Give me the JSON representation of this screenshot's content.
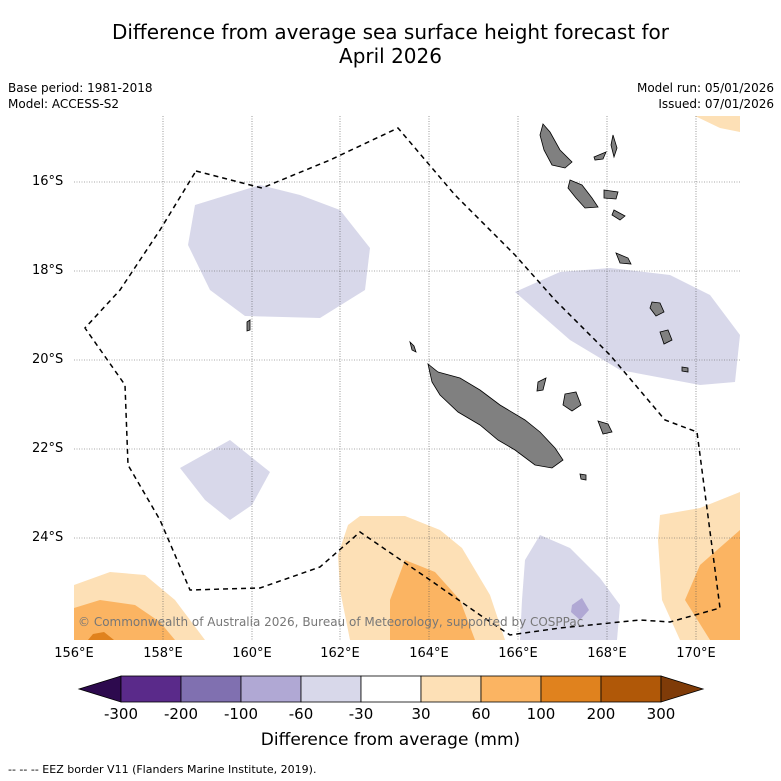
{
  "title_line1": "Difference from average sea surface height forecast for",
  "title_line2": "April 2026",
  "meta_left": {
    "base_period": "Base period: 1981-2018",
    "model": "Model: ACCESS-S2"
  },
  "meta_right": {
    "model_run": "Model run: 05/01/2026",
    "issued": "Issued: 07/01/2026"
  },
  "map": {
    "lat_labels": [
      "16°S",
      "18°S",
      "20°S",
      "22°S",
      "24°S"
    ],
    "lon_labels": [
      "156°E",
      "158°E",
      "160°E",
      "162°E",
      "164°E",
      "166°E",
      "168°E",
      "170°E"
    ],
    "copyright": "© Commonwealth of Australia 2026, Bureau of Meteorology, supported by COSPPac",
    "land_color": "#808080",
    "eez_label": "EEZ border V11"
  },
  "colorbar": {
    "ticks": [
      "-300",
      "-200",
      "-100",
      "-60",
      "-30",
      "30",
      "60",
      "100",
      "200",
      "300"
    ],
    "colors": [
      "#2d0a4e",
      "#5a2a8a",
      "#8070b0",
      "#b0a8d4",
      "#d8d8ea",
      "#ffffff",
      "#fde0b6",
      "#fbb462",
      "#e0821e",
      "#b05808",
      "#7f3b08"
    ],
    "label": "Difference from average (mm)"
  },
  "footer": "-- -- -- EEZ border V11 (Flanders Marine Institute, 2019)."
}
